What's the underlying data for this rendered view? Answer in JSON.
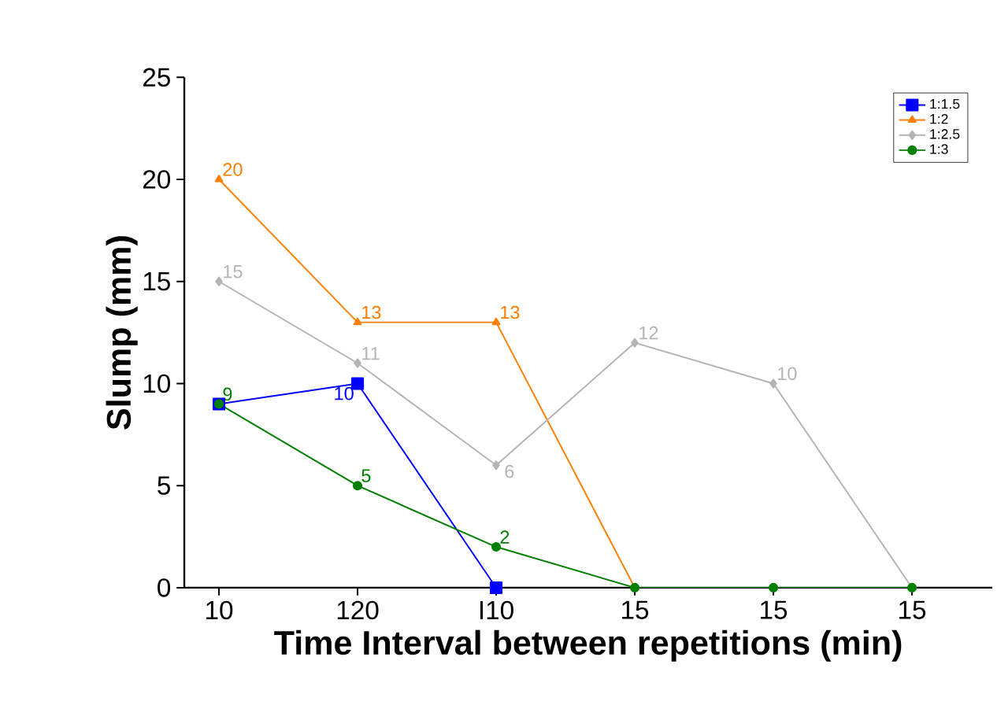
{
  "chart_data": {
    "type": "line",
    "xlabel": "Time Interval between repetitions (min)",
    "ylabel": "Slump (mm)",
    "categories": [
      "10",
      "120",
      "I10",
      "15",
      "15",
      "15"
    ],
    "ylim": [
      0,
      25
    ],
    "yticks": [
      0,
      5,
      10,
      15,
      20,
      25
    ],
    "grid": false,
    "legend": "top right",
    "series": [
      {
        "name": "1:1.5",
        "color": "#0000ff",
        "marker": "square",
        "values": [
          9,
          10,
          0,
          null,
          null,
          null
        ],
        "value_labels": [
          null,
          "10",
          null,
          null,
          null,
          null
        ]
      },
      {
        "name": "1:2",
        "color": "#ff7f00",
        "marker": "triangle",
        "values": [
          20,
          13,
          13,
          0,
          0,
          0
        ],
        "value_labels": [
          "20",
          "13",
          "13",
          null,
          null,
          null
        ]
      },
      {
        "name": "1:2.5",
        "color": "#b4b4b4",
        "marker": "diamond",
        "values": [
          15,
          11,
          6,
          12,
          10,
          0
        ],
        "value_labels": [
          "15",
          "11",
          "6",
          "12",
          "10",
          null
        ]
      },
      {
        "name": "1:3",
        "color": "#008000",
        "marker": "circle",
        "values": [
          9,
          5,
          2,
          0,
          0,
          0
        ],
        "value_labels": [
          "9",
          "5",
          "2",
          null,
          null,
          null
        ]
      }
    ]
  }
}
